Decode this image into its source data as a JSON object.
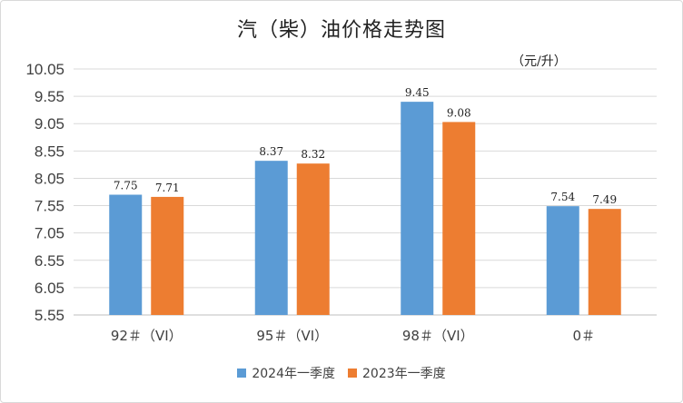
{
  "chart_data": {
    "type": "bar",
    "title": "汽（柴）油价格走势图",
    "unit_label": "（元/升）",
    "categories": [
      "92＃（VI）",
      "95＃（VI）",
      "98＃（VI）",
      "0＃"
    ],
    "series": [
      {
        "name": "2024年一季度",
        "values": [
          7.75,
          8.37,
          9.45,
          7.54
        ],
        "color": "#5b9bd5"
      },
      {
        "name": "2023年一季度",
        "values": [
          7.71,
          8.32,
          9.08,
          7.49
        ],
        "color": "#ed7d31"
      }
    ],
    "ylim": [
      5.55,
      10.05
    ],
    "yticks": [
      "10.05",
      "9.55",
      "9.05",
      "8.55",
      "8.05",
      "7.55",
      "7.05",
      "6.55",
      "6.05",
      "5.55"
    ],
    "grid": true,
    "legend_position": "bottom"
  }
}
